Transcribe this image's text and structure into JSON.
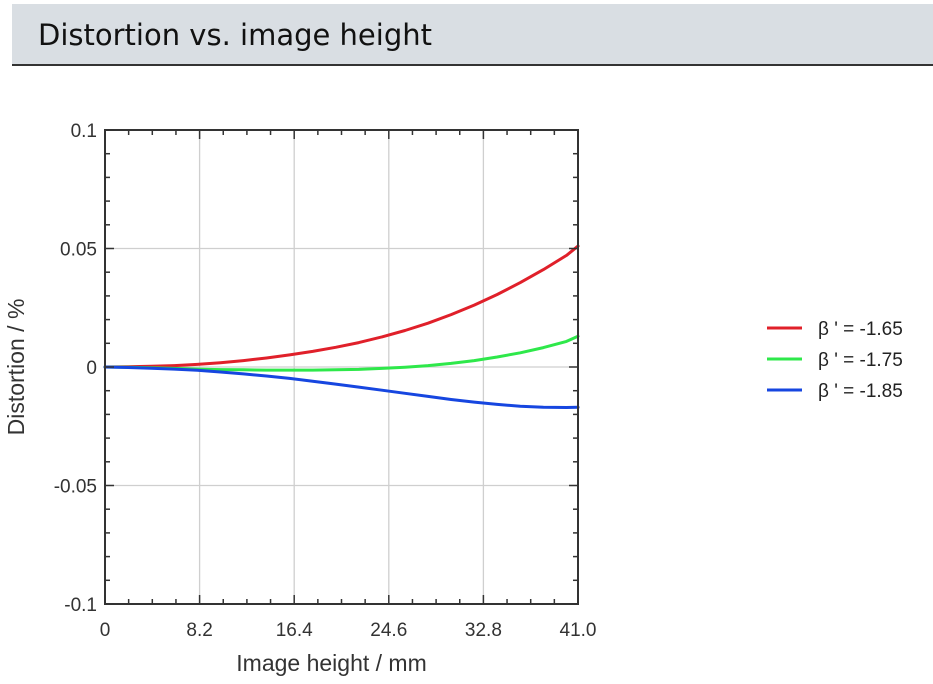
{
  "header": {
    "title": "Distortion vs. image height"
  },
  "chart_data": {
    "type": "line",
    "title": "",
    "xlabel": "Image height / mm",
    "ylabel": "Distortion / %",
    "xlim": [
      0,
      41.0
    ],
    "ylim": [
      -0.1,
      0.1
    ],
    "x_ticks": [
      "0",
      "8.2",
      "16.4",
      "24.6",
      "32.8",
      "41.0"
    ],
    "y_ticks": [
      "0.1",
      "0.05",
      "0",
      "-0.05",
      "-0.1"
    ],
    "grid": true,
    "legend_position": "right",
    "x": [
      0,
      2,
      4,
      6,
      8,
      10,
      12,
      14,
      16,
      18,
      20,
      22,
      24,
      26,
      28,
      30,
      32,
      34,
      36,
      38,
      40,
      41
    ],
    "series": [
      {
        "name": "β ' = -1.65",
        "color": "#e0202a",
        "values": [
          0,
          0.0001,
          0.0003,
          0.0006,
          0.0011,
          0.0018,
          0.0027,
          0.0038,
          0.0051,
          0.0066,
          0.0083,
          0.0103,
          0.0127,
          0.0154,
          0.0185,
          0.0221,
          0.0261,
          0.0306,
          0.0356,
          0.0411,
          0.0471,
          0.051
        ]
      },
      {
        "name": "β ' = -1.75",
        "color": "#2ee84a",
        "values": [
          0,
          -0.0001,
          -0.0003,
          -0.0006,
          -0.0009,
          -0.0011,
          -0.0012,
          -0.0013,
          -0.0013,
          -0.0013,
          -0.0012,
          -0.001,
          -0.0006,
          -0.0001,
          0.0006,
          0.0015,
          0.0027,
          0.0042,
          0.006,
          0.0082,
          0.0108,
          0.013
        ]
      },
      {
        "name": "β ' = -1.85",
        "color": "#1646e0",
        "values": [
          0,
          -0.0002,
          -0.0005,
          -0.0009,
          -0.0014,
          -0.0021,
          -0.0029,
          -0.0038,
          -0.0048,
          -0.006,
          -0.0072,
          -0.0085,
          -0.0098,
          -0.0111,
          -0.0124,
          -0.0137,
          -0.0148,
          -0.0158,
          -0.0166,
          -0.017,
          -0.0171,
          -0.017
        ]
      }
    ]
  }
}
